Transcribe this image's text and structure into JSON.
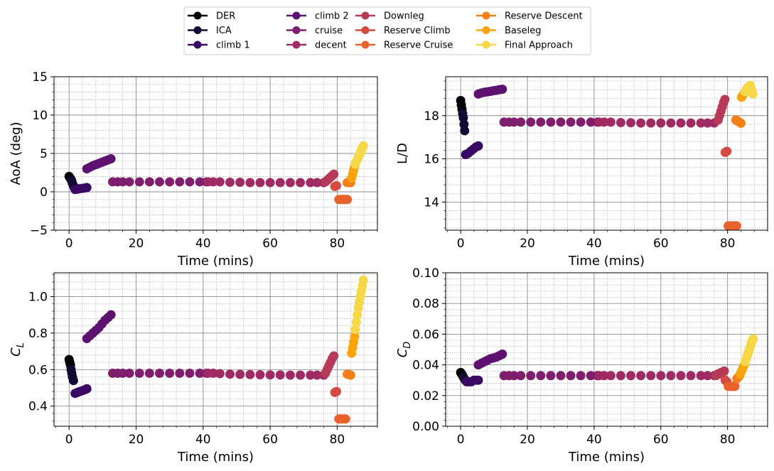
{
  "legend": {
    "columns": [
      [
        "DER",
        "ICA",
        "climb 1"
      ],
      [
        "climb 2",
        "cruise",
        "decent"
      ],
      [
        "Downleg",
        "Reserve Climb",
        "Reserve Cruise"
      ],
      [
        "Reserve Descent",
        "Baseleg",
        "Final Approach"
      ]
    ]
  },
  "segment_colors": {
    "DER": "#000004",
    "ICA": "#140b35",
    "climb 1": "#3a0963",
    "climb 2": "#5c126e",
    "cruise": "#7e1e6c",
    "decent": "#a02a63",
    "Downleg": "#b73a59",
    "Reserve Climb": "#d74a41",
    "Reserve Cruise": "#e9612b",
    "Reserve Descent": "#f47f16",
    "Baseleg": "#fba40a",
    "Final Approach": "#f6d746"
  },
  "chart_data": [
    {
      "type": "scatter",
      "ylabel": "AoA (deg)",
      "xlabel": "Time (mins)",
      "xlim": [
        -4.5,
        92
      ],
      "ylim": [
        -5,
        15
      ],
      "xticks": [
        0,
        20,
        40,
        60,
        80
      ],
      "yticks": [
        -5,
        0,
        5,
        10,
        15
      ],
      "ytick_labels": [
        "−5",
        "0",
        "5",
        "10",
        "15"
      ],
      "segments": [
        {
          "name": "DER",
          "x": [
            0.0,
            0.3,
            0.6
          ],
          "y": [
            2.0,
            1.8,
            1.6
          ]
        },
        {
          "name": "ICA",
          "x": [
            0.8,
            1.0,
            1.3,
            1.6
          ],
          "y": [
            1.4,
            1.1,
            0.8,
            0.5
          ]
        },
        {
          "name": "climb 1",
          "x": [
            1.8,
            2.5,
            3.2,
            4.0,
            4.7,
            5.3
          ],
          "y": [
            0.3,
            0.35,
            0.4,
            0.45,
            0.5,
            0.55
          ]
        },
        {
          "name": "climb 2",
          "x": [
            5.3,
            6.2,
            7.1,
            8.0,
            8.9,
            9.8,
            10.7,
            11.6,
            12.5
          ],
          "y": [
            3.0,
            3.2,
            3.4,
            3.55,
            3.7,
            3.85,
            4.0,
            4.15,
            4.3
          ]
        },
        {
          "name": "cruise",
          "x": [
            13,
            14.5,
            16,
            18,
            21,
            24,
            27,
            30,
            33,
            36,
            39,
            41
          ],
          "y": [
            1.3,
            1.3,
            1.3,
            1.3,
            1.3,
            1.3,
            1.3,
            1.3,
            1.3,
            1.3,
            1.3,
            1.3
          ]
        },
        {
          "name": "decent",
          "x": [
            41.5,
            43,
            45,
            48,
            51,
            54,
            57,
            60,
            63,
            66,
            69,
            72,
            74,
            76
          ],
          "y": [
            1.3,
            1.3,
            1.3,
            1.25,
            1.25,
            1.2,
            1.2,
            1.2,
            1.2,
            1.2,
            1.2,
            1.2,
            1.2,
            1.2
          ]
        },
        {
          "name": "Downleg",
          "x": [
            76.5,
            77,
            77.5,
            78,
            78.5,
            79
          ],
          "y": [
            1.3,
            1.5,
            1.7,
            1.9,
            2.1,
            2.3
          ]
        },
        {
          "name": "Reserve Climb",
          "x": [
            79.3,
            79.8
          ],
          "y": [
            0.7,
            0.8
          ]
        },
        {
          "name": "Reserve Cruise",
          "x": [
            80.5,
            81,
            81.5,
            82,
            82.5,
            83
          ],
          "y": [
            -1.0,
            -1.0,
            -1.0,
            -1.0,
            -1.0,
            -1.0
          ]
        },
        {
          "name": "Reserve Descent",
          "x": [
            83.0,
            83.5,
            84.0
          ],
          "y": [
            1.2,
            1.2,
            1.2
          ]
        },
        {
          "name": "Baseleg",
          "x": [
            84.3,
            84.6,
            84.9,
            85.2
          ],
          "y": [
            1.8,
            2.3,
            2.8,
            3.3
          ]
        },
        {
          "name": "Final Approach",
          "x": [
            85.4,
            85.7,
            86.0,
            86.3,
            86.6,
            86.9,
            87.2,
            87.5,
            87.8
          ],
          "y": [
            3.6,
            3.9,
            4.2,
            4.5,
            4.8,
            5.1,
            5.4,
            5.7,
            6.0
          ]
        }
      ]
    },
    {
      "type": "scatter",
      "ylabel": "L/D",
      "xlabel": "Time (mins)",
      "xlim": [
        -4.5,
        92
      ],
      "ylim": [
        12.7,
        19.8
      ],
      "xticks": [
        0,
        20,
        40,
        60,
        80
      ],
      "yticks": [
        14,
        16,
        18
      ],
      "ytick_labels": [
        "14",
        "16",
        "18"
      ],
      "segments": [
        {
          "name": "DER",
          "x": [
            0.0,
            0.2,
            0.4
          ],
          "y": [
            18.7,
            18.5,
            18.3
          ]
        },
        {
          "name": "ICA",
          "x": [
            0.6,
            0.8,
            1.0,
            1.2
          ],
          "y": [
            18.1,
            17.9,
            17.6,
            17.3
          ]
        },
        {
          "name": "climb 1",
          "x": [
            1.5,
            2.2,
            3.0,
            3.8,
            4.6,
            5.3
          ],
          "y": [
            16.2,
            16.25,
            16.35,
            16.45,
            16.55,
            16.6
          ]
        },
        {
          "name": "climb 2",
          "x": [
            5.3,
            6.2,
            7.1,
            8.0,
            8.9,
            9.8,
            10.7,
            11.6,
            12.5
          ],
          "y": [
            19.0,
            19.05,
            19.08,
            19.1,
            19.12,
            19.15,
            19.17,
            19.2,
            19.22
          ]
        },
        {
          "name": "cruise",
          "x": [
            13,
            14.5,
            16,
            18,
            21,
            24,
            27,
            30,
            33,
            36,
            39,
            41
          ],
          "y": [
            17.7,
            17.7,
            17.7,
            17.7,
            17.7,
            17.7,
            17.7,
            17.7,
            17.7,
            17.7,
            17.7,
            17.7
          ]
        },
        {
          "name": "decent",
          "x": [
            41.5,
            43,
            45,
            48,
            51,
            54,
            57,
            60,
            63,
            66,
            69,
            72,
            74,
            76
          ],
          "y": [
            17.7,
            17.7,
            17.7,
            17.68,
            17.67,
            17.66,
            17.66,
            17.66,
            17.66,
            17.66,
            17.66,
            17.66,
            17.66,
            17.66
          ]
        },
        {
          "name": "Downleg",
          "x": [
            77.2,
            77.6,
            78.0,
            78.4,
            78.8,
            79.2
          ],
          "y": [
            17.8,
            18.0,
            18.2,
            18.4,
            18.6,
            18.75
          ]
        },
        {
          "name": "Reserve Climb",
          "x": [
            79.3,
            79.8
          ],
          "y": [
            16.3,
            16.35
          ]
        },
        {
          "name": "Reserve Cruise",
          "x": [
            80.2,
            80.7,
            81.2,
            81.7,
            82.2,
            82.7
          ],
          "y": [
            12.9,
            12.9,
            12.9,
            12.9,
            12.9,
            12.9
          ]
        },
        {
          "name": "Reserve Descent",
          "x": [
            82.5,
            83.0,
            83.5,
            84.0
          ],
          "y": [
            17.8,
            17.75,
            17.7,
            17.65
          ]
        },
        {
          "name": "Baseleg",
          "x": [
            84.2,
            84.6,
            85.0
          ],
          "y": [
            18.85,
            18.95,
            19.05
          ]
        },
        {
          "name": "Final Approach",
          "x": [
            85.2,
            85.6,
            86.0,
            86.4,
            86.8,
            87.2,
            87.6
          ],
          "y": [
            19.1,
            19.2,
            19.3,
            19.35,
            19.4,
            19.2,
            19.0
          ]
        }
      ]
    },
    {
      "type": "scatter",
      "ylabel": "C_L",
      "xlabel": "Time (mins)",
      "xlim": [
        -4.5,
        92
      ],
      "ylim": [
        0.29,
        1.13
      ],
      "xticks": [
        0,
        20,
        40,
        60,
        80
      ],
      "yticks": [
        0.4,
        0.6,
        0.8,
        1.0
      ],
      "ytick_labels": [
        "0.4",
        "0.6",
        "0.8",
        "1.0"
      ],
      "segments": [
        {
          "name": "DER",
          "x": [
            0.0,
            0.2,
            0.4
          ],
          "y": [
            0.655,
            0.64,
            0.625
          ]
        },
        {
          "name": "ICA",
          "x": [
            0.6,
            0.8,
            1.0,
            1.3
          ],
          "y": [
            0.6,
            0.58,
            0.56,
            0.54
          ]
        },
        {
          "name": "climb 1",
          "x": [
            1.8,
            2.5,
            3.2,
            4.0,
            4.7,
            5.3
          ],
          "y": [
            0.47,
            0.475,
            0.48,
            0.485,
            0.49,
            0.495
          ]
        },
        {
          "name": "climb 2",
          "x": [
            5.3,
            6.2,
            7.1,
            8.0,
            8.9,
            9.8,
            10.7,
            11.6,
            12.5
          ],
          "y": [
            0.77,
            0.785,
            0.8,
            0.815,
            0.83,
            0.85,
            0.87,
            0.885,
            0.9
          ]
        },
        {
          "name": "cruise",
          "x": [
            13,
            14.5,
            16,
            18,
            21,
            24,
            27,
            30,
            33,
            36,
            39,
            41
          ],
          "y": [
            0.58,
            0.58,
            0.58,
            0.58,
            0.58,
            0.58,
            0.58,
            0.58,
            0.58,
            0.58,
            0.58,
            0.58
          ]
        },
        {
          "name": "decent",
          "x": [
            41.5,
            43,
            45,
            48,
            51,
            54,
            57,
            60,
            63,
            66,
            69,
            72,
            74,
            76
          ],
          "y": [
            0.58,
            0.58,
            0.578,
            0.575,
            0.574,
            0.573,
            0.572,
            0.571,
            0.571,
            0.57,
            0.57,
            0.57,
            0.57,
            0.57
          ]
        },
        {
          "name": "Downleg",
          "x": [
            76.5,
            77,
            77.5,
            78,
            78.5,
            79
          ],
          "y": [
            0.58,
            0.6,
            0.62,
            0.64,
            0.66,
            0.675
          ]
        },
        {
          "name": "Reserve Climb",
          "x": [
            79.3,
            79.8
          ],
          "y": [
            0.475,
            0.48
          ]
        },
        {
          "name": "Reserve Cruise",
          "x": [
            80.5,
            81,
            81.5,
            82,
            82.5
          ],
          "y": [
            0.33,
            0.33,
            0.33,
            0.33,
            0.33
          ]
        },
        {
          "name": "Reserve Descent",
          "x": [
            83.0,
            83.5,
            84.0
          ],
          "y": [
            0.575,
            0.573,
            0.57
          ]
        },
        {
          "name": "Baseleg",
          "x": [
            84.3,
            84.6,
            84.9,
            85.2
          ],
          "y": [
            0.69,
            0.72,
            0.75,
            0.78
          ]
        },
        {
          "name": "Final Approach",
          "x": [
            85.4,
            85.7,
            86.0,
            86.3,
            86.6,
            86.9,
            87.2,
            87.5,
            87.8
          ],
          "y": [
            0.82,
            0.86,
            0.9,
            0.94,
            0.97,
            1.0,
            1.03,
            1.06,
            1.09
          ]
        }
      ]
    },
    {
      "type": "scatter",
      "ylabel": "C_D",
      "xlabel": "Time (mins)",
      "xlim": [
        -4.5,
        92
      ],
      "ylim": [
        0.0,
        0.1
      ],
      "xticks": [
        0,
        20,
        40,
        60,
        80
      ],
      "yticks": [
        0.0,
        0.02,
        0.04,
        0.06,
        0.08,
        0.1
      ],
      "ytick_labels": [
        "0.00",
        "0.02",
        "0.04",
        "0.06",
        "0.08",
        "0.10"
      ],
      "segments": [
        {
          "name": "DER",
          "x": [
            0.0,
            0.3,
            0.6
          ],
          "y": [
            0.035,
            0.034,
            0.033
          ]
        },
        {
          "name": "ICA",
          "x": [
            0.8,
            1.1,
            1.4
          ],
          "y": [
            0.032,
            0.031,
            0.03
          ]
        },
        {
          "name": "climb 1",
          "x": [
            1.8,
            2.5,
            3.2,
            4.0,
            4.7,
            5.3
          ],
          "y": [
            0.029,
            0.029,
            0.029,
            0.03,
            0.03,
            0.03
          ]
        },
        {
          "name": "climb 2",
          "x": [
            5.3,
            6.2,
            7.1,
            8.0,
            8.9,
            9.8,
            10.7,
            11.6,
            12.5
          ],
          "y": [
            0.04,
            0.041,
            0.042,
            0.043,
            0.044,
            0.0445,
            0.045,
            0.046,
            0.047
          ]
        },
        {
          "name": "cruise",
          "x": [
            13,
            14.5,
            16,
            18,
            21,
            24,
            27,
            30,
            33,
            36,
            39,
            41
          ],
          "y": [
            0.033,
            0.033,
            0.033,
            0.033,
            0.033,
            0.033,
            0.033,
            0.033,
            0.033,
            0.033,
            0.033,
            0.033
          ]
        },
        {
          "name": "decent",
          "x": [
            41.5,
            43,
            45,
            48,
            51,
            54,
            57,
            60,
            63,
            66,
            69,
            72,
            74,
            76
          ],
          "y": [
            0.033,
            0.033,
            0.033,
            0.033,
            0.033,
            0.033,
            0.033,
            0.033,
            0.033,
            0.033,
            0.033,
            0.033,
            0.033,
            0.033
          ]
        },
        {
          "name": "Downleg",
          "x": [
            76.5,
            77,
            77.5,
            78,
            78.5,
            79
          ],
          "y": [
            0.033,
            0.034,
            0.034,
            0.035,
            0.035,
            0.036
          ]
        },
        {
          "name": "Reserve Climb",
          "x": [
            79.3,
            79.8
          ],
          "y": [
            0.03,
            0.029
          ]
        },
        {
          "name": "Reserve Cruise",
          "x": [
            80.2,
            80.7,
            81.2,
            81.7,
            82.2
          ],
          "y": [
            0.026,
            0.026,
            0.026,
            0.026,
            0.026
          ]
        },
        {
          "name": "Reserve Descent",
          "x": [
            82.8,
            83.2,
            83.6
          ],
          "y": [
            0.031,
            0.032,
            0.033
          ]
        },
        {
          "name": "Baseleg",
          "x": [
            83.8,
            84.2,
            84.6,
            85.0
          ],
          "y": [
            0.034,
            0.036,
            0.038,
            0.04
          ]
        },
        {
          "name": "Final Approach",
          "x": [
            85.3,
            85.6,
            85.9,
            86.2,
            86.5,
            86.8,
            87.1,
            87.4,
            87.7
          ],
          "y": [
            0.042,
            0.044,
            0.046,
            0.048,
            0.05,
            0.052,
            0.054,
            0.056,
            0.057
          ]
        }
      ]
    }
  ]
}
